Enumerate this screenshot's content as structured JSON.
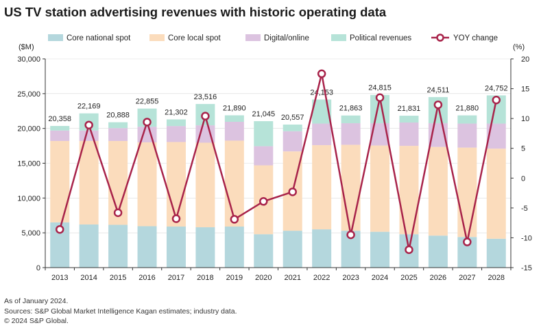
{
  "title": "US TV station advertising revenues with historic operating data",
  "footer": {
    "line1": "As of January 2024.",
    "line2": "Sources: S&P Global Market Intelligence Kagan estimates; industry data.",
    "line3": "© 2024 S&P Global."
  },
  "colors": {
    "core_national": "#b4d7dd",
    "core_local": "#fbdcbc",
    "digital": "#dcc3e0",
    "political": "#b6e3d8",
    "yoy_line": "#a8234a",
    "axis": "#333333",
    "grid": "#d9d9d9"
  },
  "chart_data": {
    "type": "bar",
    "stacked": true,
    "title": "US TV station advertising revenues with historic operating data",
    "left_axis_label": "($M)",
    "right_axis_label": "(%)",
    "ylim": [
      0,
      30000
    ],
    "y_ticks": [
      0,
      5000,
      10000,
      15000,
      20000,
      25000,
      30000
    ],
    "y_tick_labels": [
      "0",
      "5,000",
      "10,000",
      "15,000",
      "20,000",
      "25,000",
      "30,000"
    ],
    "y2lim": [
      -15,
      20
    ],
    "y2_ticks": [
      -15,
      -10,
      -5,
      0,
      5,
      10,
      15,
      20
    ],
    "y2_tick_labels": [
      "-15",
      "-10",
      "-5",
      "0",
      "5",
      "10",
      "15",
      "20"
    ],
    "categories": [
      "2013",
      "2014",
      "2015",
      "2016",
      "2017",
      "2018",
      "2019",
      "2020",
      "2021",
      "2022",
      "2023",
      "2024",
      "2025",
      "2026",
      "2027",
      "2028"
    ],
    "series": [
      {
        "name": "Core national spot",
        "key": "core_national",
        "values": [
          6500,
          6200,
          6150,
          5950,
          5900,
          5800,
          5900,
          4800,
          5300,
          5500,
          5300,
          5150,
          4800,
          4600,
          4400,
          4150
        ]
      },
      {
        "name": "Core local spot",
        "key": "core_local",
        "values": [
          11700,
          12000,
          12050,
          12050,
          12150,
          12150,
          12350,
          9900,
          11400,
          12100,
          12350,
          12400,
          12700,
          12750,
          12850,
          12950
        ]
      },
      {
        "name": "Digital/online",
        "key": "digital",
        "values": [
          1500,
          1500,
          1850,
          2250,
          2300,
          2500,
          2700,
          2750,
          2900,
          3100,
          3100,
          3200,
          3350,
          3400,
          3450,
          3600
        ]
      },
      {
        "name": "Political revenues",
        "key": "political",
        "values": [
          658,
          2469,
          838,
          2605,
          952,
          3066,
          940,
          3595,
          957,
          3453,
          1113,
          4065,
          981,
          3761,
          1180,
          4052
        ]
      }
    ],
    "totals": [
      20358,
      22169,
      20888,
      22855,
      21302,
      23516,
      21890,
      21045,
      20557,
      24153,
      21863,
      24815,
      21831,
      24511,
      21880,
      24752
    ],
    "total_labels": [
      "20,358",
      "22,169",
      "20,888",
      "22,855",
      "21,302",
      "23,516",
      "21,890",
      "21,045",
      "20,557",
      "24,153",
      "21,863",
      "24,815",
      "21,831",
      "24,511",
      "21,880",
      "24,752"
    ],
    "yoy_series_name": "YOY change",
    "yoy_change": [
      -8.6,
      8.9,
      -5.8,
      9.4,
      -6.8,
      10.4,
      -6.9,
      -3.9,
      -2.3,
      17.5,
      -9.5,
      13.5,
      -12.0,
      12.3,
      -10.7,
      13.1
    ]
  }
}
